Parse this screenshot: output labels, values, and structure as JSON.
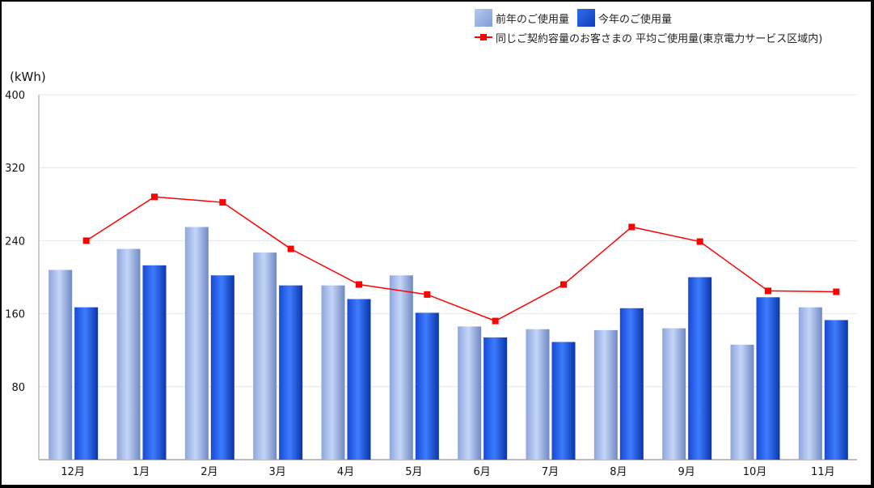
{
  "legend": {
    "prev_label": "前年のご使用量",
    "curr_label": "今年のご使用量",
    "avg_label": "同じご契約容量のお客さまの 平均ご使用量(東京電力サービス区域内)"
  },
  "axis": {
    "unit": "(kWh)",
    "y_ticks": [
      "400",
      "320",
      "240",
      "160",
      "80"
    ]
  },
  "colors": {
    "prev": "#9db4e6",
    "curr": "#1a55e0",
    "avg": "#ff0000",
    "grid": "#e6e6e6"
  },
  "chart_data": {
    "type": "bar",
    "title": "",
    "xlabel": "",
    "ylabel": "(kWh)",
    "ylim": [
      0,
      400
    ],
    "y_ticks": [
      0,
      80,
      160,
      240,
      320,
      400
    ],
    "grid": true,
    "legend_position": "top-right",
    "categories": [
      "12月",
      "1月",
      "2月",
      "3月",
      "4月",
      "5月",
      "6月",
      "7月",
      "8月",
      "9月",
      "10月",
      "11月"
    ],
    "series": [
      {
        "name": "前年のご使用量",
        "type": "bar",
        "values": [
          208,
          231,
          255,
          227,
          191,
          202,
          146,
          143,
          142,
          144,
          126,
          167
        ]
      },
      {
        "name": "今年のご使用量",
        "type": "bar",
        "values": [
          167,
          213,
          202,
          191,
          176,
          161,
          134,
          129,
          166,
          200,
          178,
          153
        ]
      },
      {
        "name": "同じご契約容量のお客さまの 平均ご使用量(東京電力サービス区域内)",
        "type": "line",
        "values": [
          240,
          288,
          282,
          231,
          192,
          181,
          152,
          192,
          255,
          239,
          185,
          184
        ]
      }
    ]
  }
}
